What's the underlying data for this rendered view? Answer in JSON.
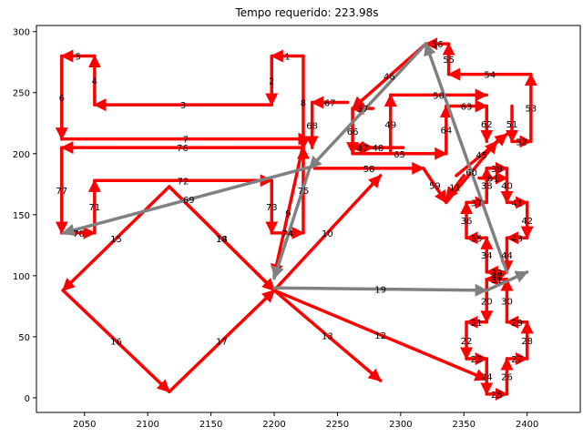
{
  "chart_data": {
    "type": "line",
    "title": "Tempo requerido: 223.98s",
    "xlabel": "",
    "ylabel": "",
    "xlim": [
      2012,
      2442
    ],
    "ylim": [
      -12,
      305
    ],
    "x_ticks": [
      2050,
      2100,
      2150,
      2200,
      2250,
      2300,
      2350,
      2400
    ],
    "y_ticks": [
      0,
      50,
      100,
      150,
      200,
      250,
      300
    ],
    "grid": false,
    "colors": {
      "red_path": "#ff0000",
      "gray_path": "#808080",
      "axes": "#000000"
    },
    "series": [
      {
        "color": "#ff0000",
        "segments": [
          {
            "label": "1",
            "from": [
              2223,
              280
            ],
            "to": [
              2198,
              280
            ]
          },
          {
            "label": "2",
            "from": [
              2198,
              280
            ],
            "to": [
              2198,
              240
            ]
          },
          {
            "label": "3",
            "from": [
              2198,
              240
            ],
            "to": [
              2058,
              240
            ]
          },
          {
            "label": "4",
            "from": [
              2058,
              240
            ],
            "to": [
              2058,
              280
            ]
          },
          {
            "label": "5",
            "from": [
              2058,
              280
            ],
            "to": [
              2032,
              280
            ]
          },
          {
            "label": "6",
            "from": [
              2032,
              280
            ],
            "to": [
              2032,
              212
            ]
          },
          {
            "label": "7",
            "from": [
              2032,
              212
            ],
            "to": [
              2228,
              212
            ]
          },
          {
            "label": "8",
            "from": [
              2223,
              280
            ],
            "to": [
              2223,
              204
            ]
          },
          {
            "label": "9",
            "from": [
              2222,
              203
            ],
            "to": [
              2200,
              100
            ]
          },
          {
            "label": "10",
            "from": [
              2200,
              88
            ],
            "to": [
              2284,
              182
            ]
          },
          {
            "label": "11",
            "from": [
              2350,
              182
            ],
            "to": [
              2336,
              163
            ]
          },
          {
            "label": "12",
            "from": [
              2200,
              88
            ],
            "to": [
              2368,
              15
            ]
          },
          {
            "label": "13",
            "from": [
              2200,
              88
            ],
            "to": [
              2284,
              14
            ]
          },
          {
            "label": "14",
            "from": [
              2117,
              173
            ],
            "to": [
              2200,
              88
            ]
          },
          {
            "label": "15",
            "from": [
              2117,
              173
            ],
            "to": [
              2033,
              88
            ]
          },
          {
            "label": "16",
            "from": [
              2033,
              88
            ],
            "to": [
              2117,
              5
            ]
          },
          {
            "label": "17",
            "from": [
              2117,
              5
            ],
            "to": [
              2200,
              88
            ]
          },
          {
            "label": "18",
            "from": [
              2117,
              173
            ],
            "to": [
              2200,
              88
            ]
          },
          {
            "label": "20",
            "from": [
              2368,
              97
            ],
            "to": [
              2368,
              62
            ]
          },
          {
            "label": "21",
            "from": [
              2368,
              62
            ],
            "to": [
              2352,
              62
            ]
          },
          {
            "label": "22",
            "from": [
              2352,
              62
            ],
            "to": [
              2352,
              32
            ]
          },
          {
            "label": "23",
            "from": [
              2352,
              32
            ],
            "to": [
              2368,
              32
            ]
          },
          {
            "label": "24",
            "from": [
              2368,
              32
            ],
            "to": [
              2368,
              3
            ]
          },
          {
            "label": "25",
            "from": [
              2368,
              3
            ],
            "to": [
              2384,
              3
            ]
          },
          {
            "label": "26",
            "from": [
              2384,
              3
            ],
            "to": [
              2384,
              32
            ]
          },
          {
            "label": "27",
            "from": [
              2384,
              32
            ],
            "to": [
              2400,
              32
            ]
          },
          {
            "label": "28",
            "from": [
              2400,
              32
            ],
            "to": [
              2400,
              62
            ]
          },
          {
            "label": "29",
            "from": [
              2400,
              62
            ],
            "to": [
              2384,
              62
            ]
          },
          {
            "label": "30",
            "from": [
              2384,
              62
            ],
            "to": [
              2384,
              97
            ]
          },
          {
            "label": "31",
            "from": [
              2384,
              97
            ],
            "to": [
              2368,
              97
            ]
          },
          {
            "label": "32",
            "from": [
              2368,
              97
            ],
            "to": [
              2384,
              103
            ]
          },
          {
            "label": "33",
            "from": [
              2384,
              103
            ],
            "to": [
              2368,
              103
            ]
          },
          {
            "label": "34",
            "from": [
              2368,
              103
            ],
            "to": [
              2368,
              131
            ]
          },
          {
            "label": "35",
            "from": [
              2368,
              131
            ],
            "to": [
              2352,
              131
            ]
          },
          {
            "label": "36",
            "from": [
              2352,
              131
            ],
            "to": [
              2352,
              160
            ]
          },
          {
            "label": "37",
            "from": [
              2352,
              160
            ],
            "to": [
              2368,
              160
            ]
          },
          {
            "label": "38",
            "from": [
              2368,
              160
            ],
            "to": [
              2368,
              188
            ]
          },
          {
            "label": "39",
            "from": [
              2368,
              188
            ],
            "to": [
              2384,
              188
            ]
          },
          {
            "label": "40",
            "from": [
              2384,
              188
            ],
            "to": [
              2384,
              160
            ]
          },
          {
            "label": "41",
            "from": [
              2384,
              160
            ],
            "to": [
              2400,
              160
            ]
          },
          {
            "label": "42",
            "from": [
              2400,
              160
            ],
            "to": [
              2400,
              131
            ]
          },
          {
            "label": "43",
            "from": [
              2400,
              131
            ],
            "to": [
              2384,
              131
            ]
          },
          {
            "label": "44",
            "from": [
              2384,
              131
            ],
            "to": [
              2384,
              103
            ]
          },
          {
            "label": "45",
            "from": [
              2344,
              182
            ],
            "to": [
              2384,
              216
            ]
          },
          {
            "label": "46",
            "from": [
              2320,
              290
            ],
            "to": [
              2262,
              237
            ]
          },
          {
            "label": "47",
            "from": [
              2262,
              205
            ],
            "to": [
              2278,
              205
            ]
          },
          {
            "label": "48",
            "from": [
              2302,
              205
            ],
            "to": [
              2262,
              205
            ]
          },
          {
            "label": "49",
            "from": [
              2292,
              200
            ],
            "to": [
              2292,
              248
            ]
          },
          {
            "label": "50",
            "from": [
              2292,
              248
            ],
            "to": [
              2368,
              248
            ]
          },
          {
            "label": "51",
            "from": [
              2388,
              239
            ],
            "to": [
              2388,
              210
            ]
          },
          {
            "label": "52",
            "from": [
              2388,
              210
            ],
            "to": [
              2403,
              210
            ]
          },
          {
            "label": "53",
            "from": [
              2403,
              210
            ],
            "to": [
              2403,
              265
            ]
          },
          {
            "label": "54",
            "from": [
              2403,
              265
            ],
            "to": [
              2338,
              265
            ]
          },
          {
            "label": "55",
            "from": [
              2338,
              265
            ],
            "to": [
              2338,
              290
            ]
          },
          {
            "label": "56",
            "from": [
              2338,
              290
            ],
            "to": [
              2320,
              290
            ]
          },
          {
            "label": "57",
            "from": [
              2278,
              237
            ],
            "to": [
              2262,
              237
            ]
          },
          {
            "label": "58",
            "from": [
              2232,
              188
            ],
            "to": [
              2318,
              188
            ]
          },
          {
            "label": "59",
            "from": [
              2318,
              188
            ],
            "to": [
              2336,
              160
            ]
          },
          {
            "label": "60",
            "from": [
              2336,
              160
            ],
            "to": [
              2376,
              210
            ]
          },
          {
            "label": "61",
            "from": [
              2362,
              180
            ],
            "to": [
              2384,
              180
            ]
          },
          {
            "label": "62",
            "from": [
              2368,
              239
            ],
            "to": [
              2368,
              210
            ]
          },
          {
            "label": "63",
            "from": [
              2336,
              239
            ],
            "to": [
              2368,
              239
            ]
          },
          {
            "label": "64",
            "from": [
              2336,
              200
            ],
            "to": [
              2336,
              239
            ]
          },
          {
            "label": "65",
            "from": [
              2262,
              200
            ],
            "to": [
              2336,
              200
            ]
          },
          {
            "label": "66",
            "from": [
              2262,
              237
            ],
            "to": [
              2262,
              200
            ]
          },
          {
            "label": "67",
            "from": [
              2258,
              242
            ],
            "to": [
              2230,
              242
            ]
          },
          {
            "label": "68",
            "from": [
              2230,
              242
            ],
            "to": [
              2230,
              205
            ]
          },
          {
            "label": "70",
            "from": [
              2033,
              135
            ],
            "to": [
              2058,
              135
            ]
          },
          {
            "label": "71",
            "from": [
              2058,
              135
            ],
            "to": [
              2058,
              178
            ]
          },
          {
            "label": "72",
            "from": [
              2058,
              178
            ],
            "to": [
              2198,
              178
            ]
          },
          {
            "label": "73",
            "from": [
              2198,
              178
            ],
            "to": [
              2198,
              135
            ]
          },
          {
            "label": "74",
            "from": [
              2198,
              135
            ],
            "to": [
              2223,
              135
            ]
          },
          {
            "label": "75",
            "from": [
              2223,
              135
            ],
            "to": [
              2223,
              205
            ]
          },
          {
            "label": "76",
            "from": [
              2223,
              205
            ],
            "to": [
              2032,
              205
            ]
          },
          {
            "label": "77",
            "from": [
              2032,
              205
            ],
            "to": [
              2032,
              135
            ]
          }
        ]
      },
      {
        "color": "#808080",
        "segments": [
          {
            "label": "19",
            "from": [
              2200,
              90
            ],
            "to": [
              2368,
              88
            ]
          },
          {
            "label": "69",
            "from": [
              2232,
              190
            ],
            "to": [
              2033,
              135
            ]
          },
          {
            "label": "",
            "from": [
              2368,
              88
            ],
            "to": [
              2400,
              103
            ]
          },
          {
            "label": "",
            "from": [
              2384,
              103
            ],
            "to": [
              2320,
              290
            ]
          },
          {
            "label": "",
            "from": [
              2320,
              290
            ],
            "to": [
              2228,
              188
            ]
          },
          {
            "label": "",
            "from": [
              2228,
              188
            ],
            "to": [
              2200,
              98
            ]
          }
        ]
      }
    ]
  }
}
